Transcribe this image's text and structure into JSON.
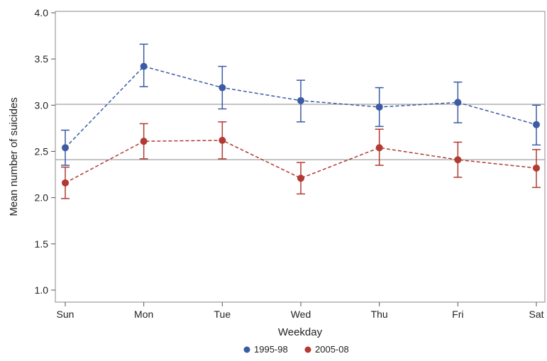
{
  "chart_data": {
    "type": "line",
    "xlabel": "Weekday",
    "ylabel": "Mean number of suicides",
    "categories": [
      "Sun",
      "Mon",
      "Tue",
      "Wed",
      "Thu",
      "Fri",
      "Sat"
    ],
    "ylim": [
      1.0,
      4.0
    ],
    "yticks": [
      "1.0",
      "1.5",
      "2.0",
      "2.5",
      "3.0",
      "3.5",
      "4.0"
    ],
    "grid": false,
    "reference_lines": [
      3.01,
      2.41
    ],
    "legend_position": "bottom",
    "series": [
      {
        "name": "1995-98",
        "color": "#3b5ba5",
        "values": [
          2.54,
          3.42,
          3.19,
          3.05,
          2.98,
          3.03,
          2.79
        ],
        "lower": [
          2.35,
          3.2,
          2.96,
          2.82,
          2.77,
          2.81,
          2.57
        ],
        "upper": [
          2.73,
          3.66,
          3.42,
          3.27,
          3.19,
          3.25,
          3.0
        ]
      },
      {
        "name": "2005-08",
        "color": "#b13a33",
        "values": [
          2.16,
          2.61,
          2.62,
          2.21,
          2.54,
          2.41,
          2.32
        ],
        "lower": [
          1.99,
          2.42,
          2.42,
          2.04,
          2.35,
          2.22,
          2.11
        ],
        "upper": [
          2.33,
          2.8,
          2.82,
          2.38,
          2.74,
          2.6,
          2.52
        ]
      }
    ]
  }
}
